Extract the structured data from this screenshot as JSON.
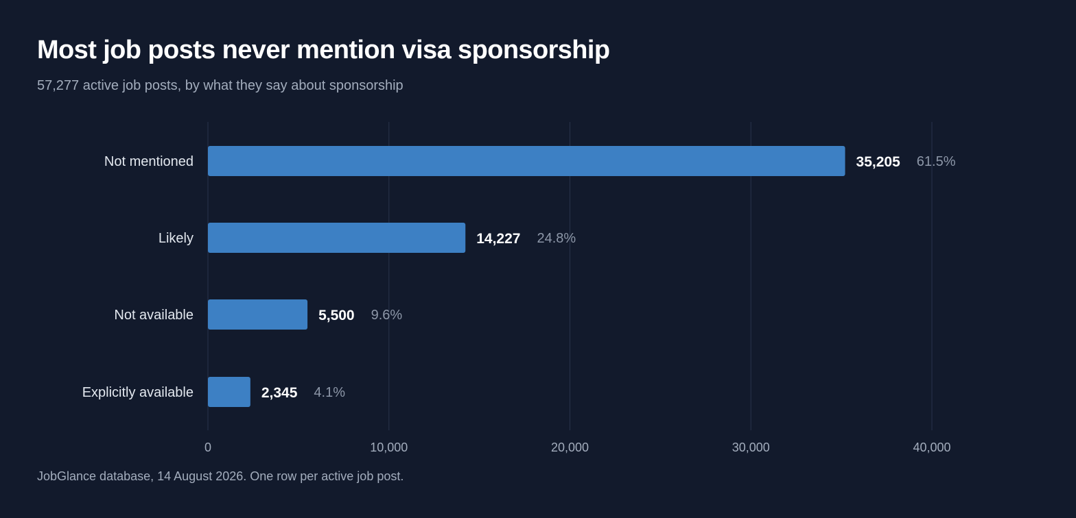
{
  "colors": {
    "background": "#121a2c",
    "bar": "#3d80c4",
    "grid": "#253047"
  },
  "chart_data": {
    "type": "bar",
    "orientation": "horizontal",
    "title": "Most job posts never mention visa sponsorship",
    "subtitle": "57,277 active job posts, by what they say about sponsorship",
    "source": "JobGlance database, 14 August 2026. One row per active job post.",
    "categories": [
      "Not mentioned",
      "Likely",
      "Not available",
      "Explicitly available"
    ],
    "values": [
      35205,
      14227,
      5500,
      2345
    ],
    "value_labels": [
      "35,205",
      "14,227",
      "5,500",
      "2,345"
    ],
    "percent_labels": [
      "61.5%",
      "24.8%",
      "9.6%",
      "4.1%"
    ],
    "xlim": [
      0,
      40000
    ],
    "ticks": [
      0,
      10000,
      20000,
      30000,
      40000
    ],
    "tick_labels": [
      "0",
      "10,000",
      "20,000",
      "30,000",
      "40,000"
    ],
    "grid": true,
    "legend": "none"
  }
}
